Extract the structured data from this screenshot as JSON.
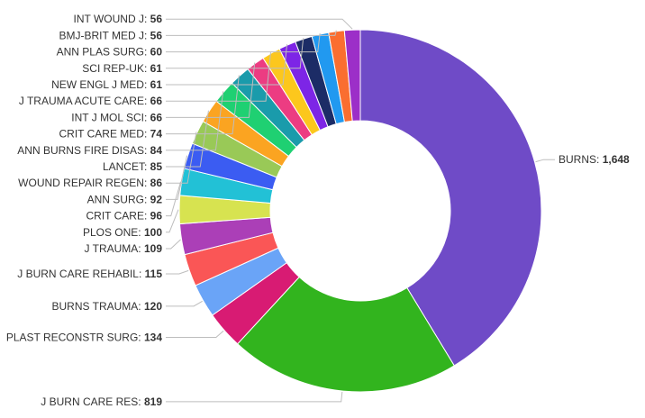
{
  "chart_data": {
    "type": "pie",
    "variant": "donut",
    "title": "",
    "legend": "none",
    "labels_position": "outside-with-leaders",
    "series": [
      {
        "label": "BURNS",
        "value": 1648,
        "value_text": "1,648",
        "color": "#6f4bc7"
      },
      {
        "label": "J BURN CARE RES",
        "value": 819,
        "value_text": "819",
        "color": "#32b41e"
      },
      {
        "label": "PLAST RECONSTR SURG",
        "value": 134,
        "value_text": "134",
        "color": "#d81b73"
      },
      {
        "label": "BURNS TRAUMA",
        "value": 120,
        "value_text": "120",
        "color": "#6aa4f7"
      },
      {
        "label": "J BURN CARE REHABIL",
        "value": 115,
        "value_text": "115",
        "color": "#fa5656"
      },
      {
        "label": "J TRAUMA",
        "value": 109,
        "value_text": "109",
        "color": "#ab3fb7"
      },
      {
        "label": "PLOS ONE",
        "value": 100,
        "value_text": "100",
        "color": "#d7e350"
      },
      {
        "label": "CRIT CARE",
        "value": 96,
        "value_text": "96",
        "color": "#22c1d6"
      },
      {
        "label": "ANN SURG",
        "value": 92,
        "value_text": "92",
        "color": "#3b5cf2"
      },
      {
        "label": "WOUND REPAIR REGEN",
        "value": 86,
        "value_text": "86",
        "color": "#99c957"
      },
      {
        "label": "LANCET",
        "value": 85,
        "value_text": "85",
        "color": "#fba421"
      },
      {
        "label": "ANN BURNS FIRE DISAS",
        "value": 84,
        "value_text": "84",
        "color": "#1fd072"
      },
      {
        "label": "CRIT CARE MED",
        "value": 74,
        "value_text": "74",
        "color": "#1a9bab"
      },
      {
        "label": "INT J MOL SCI",
        "value": 66,
        "value_text": "66",
        "color": "#ec3c82"
      },
      {
        "label": "J TRAUMA ACUTE CARE",
        "value": 66,
        "value_text": "66",
        "color": "#fcc71d"
      },
      {
        "label": "NEW ENGL J MED",
        "value": 61,
        "value_text": "61",
        "color": "#7d25e6"
      },
      {
        "label": "SCI REP-UK",
        "value": 61,
        "value_text": "61",
        "color": "#1c2c66"
      },
      {
        "label": "ANN PLAS SURG",
        "value": 60,
        "value_text": "60",
        "color": "#2199f0"
      },
      {
        "label": "BMJ-BRIT MED J",
        "value": 56,
        "value_text": "56",
        "color": "#fa6e30"
      },
      {
        "label": "INT WOUND J",
        "value": 56,
        "value_text": "56",
        "color": "#9c2fc8"
      }
    ]
  }
}
